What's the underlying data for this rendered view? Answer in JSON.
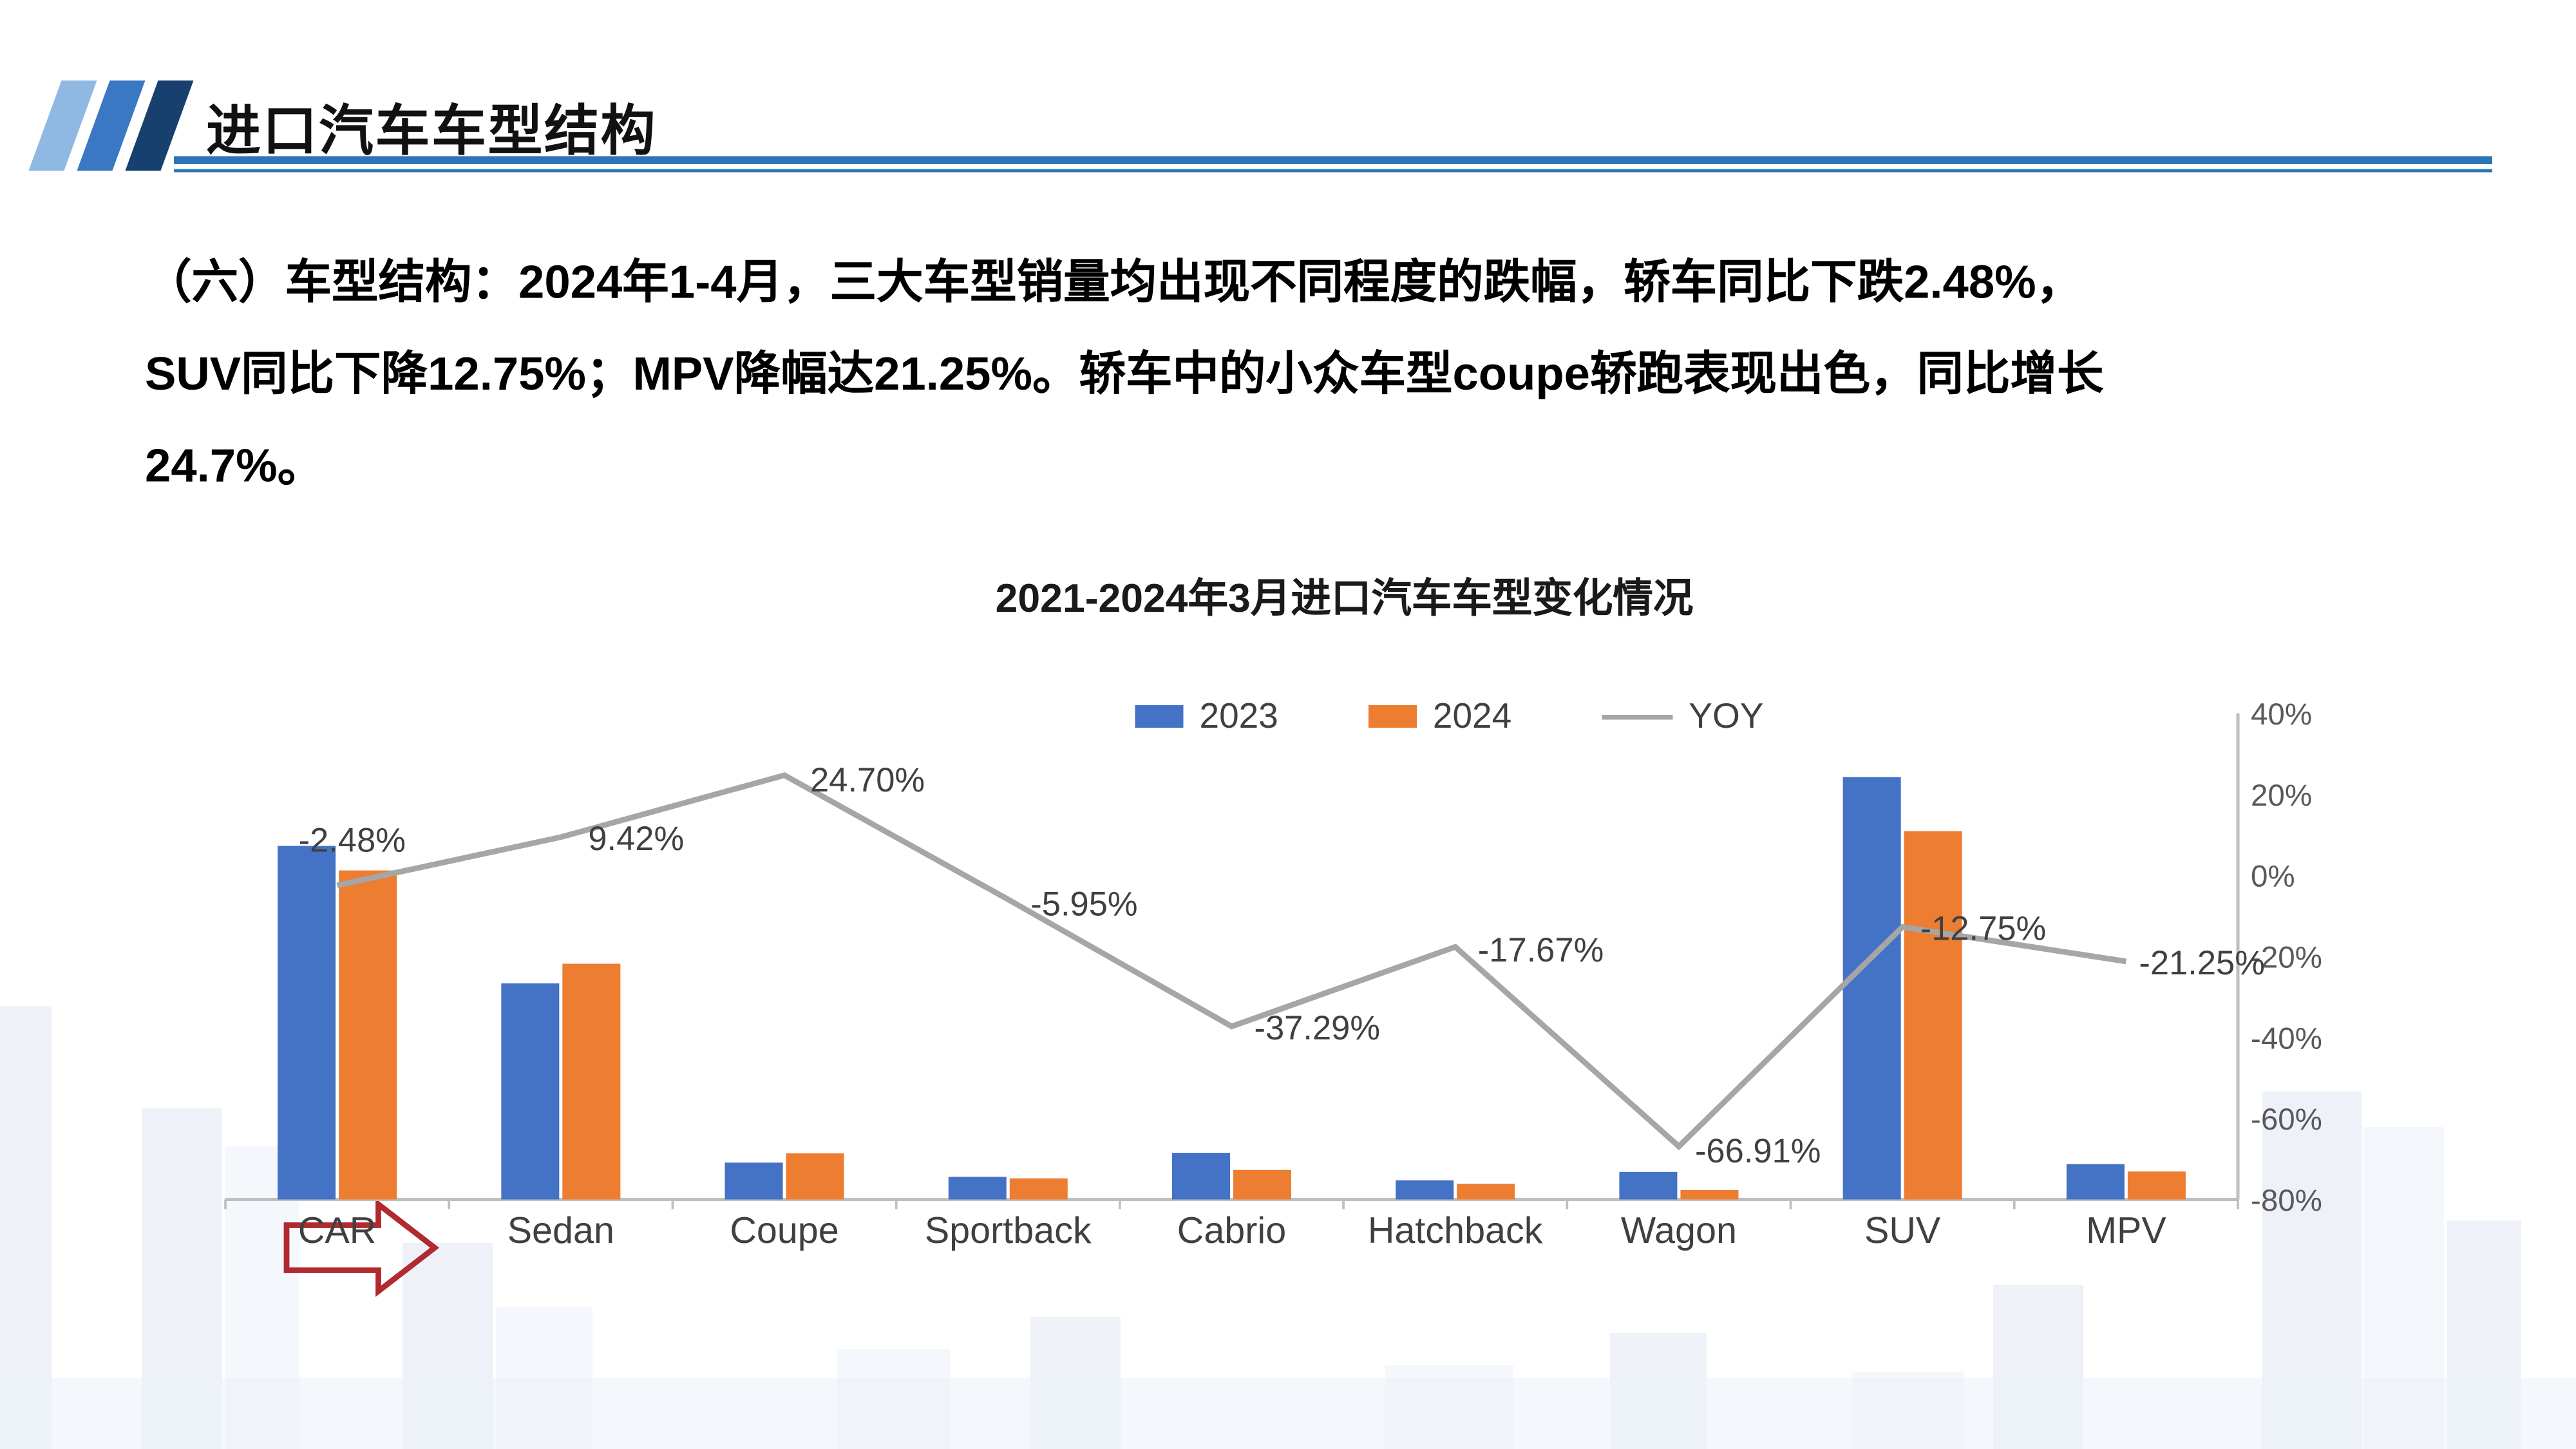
{
  "header": {
    "title": "进口汽车车型结构"
  },
  "intro": {
    "lines": [
      "（六）车型结构：2024年1-4月，三大车型销量均出现不同程度的跌幅，轿车同比下跌2.48%，",
      "SUV同比下降12.75%；MPV降幅达21.25%。轿车中的小众车型coupe轿跑表现出色，同比增长",
      "24.7%。"
    ]
  },
  "chart_data": {
    "type": "bar",
    "subtype": "bar+line-combo",
    "title": "2021-2024年3月进口汽车车型变化情况",
    "categories": [
      "CAR",
      "Sedan",
      "Coupe",
      "Sportback",
      "Cabrio",
      "Hatchback",
      "Wagon",
      "SUV",
      "MPV"
    ],
    "series": [
      {
        "name": "2023",
        "type": "bar",
        "color": "#4472C4",
        "values": [
          72,
          44,
          7.5,
          4.6,
          9.5,
          3.9,
          5.6,
          86,
          7.2
        ]
      },
      {
        "name": "2024",
        "type": "bar",
        "color": "#ED7D31",
        "values": [
          67,
          48,
          9.4,
          4.3,
          6.0,
          3.2,
          1.9,
          75,
          5.7
        ]
      },
      {
        "name": "YOY",
        "type": "line",
        "color": "#A6A6A6",
        "values": [
          -2.48,
          9.42,
          24.7,
          -5.95,
          -37.29,
          -17.67,
          -66.91,
          -12.75,
          -21.25
        ],
        "labels": [
          "-2.48%",
          "9.42%",
          "24.70%",
          "-5.95%",
          "-37.29%",
          "-17.67%",
          "-66.91%",
          "-12.75%",
          "-21.25%"
        ]
      }
    ],
    "right_axis": {
      "ticks": [
        "40%",
        "20%",
        "0%",
        "-20%",
        "-40%",
        "-60%",
        "-80%"
      ],
      "max": 40,
      "min": -80,
      "side": "right"
    },
    "left_axis": {
      "visible": false,
      "bar_values_scale": "relative 0-100 (axis hidden in source)"
    },
    "legend": {
      "entries": [
        "2023",
        "2024",
        "YOY"
      ],
      "position": "top-center"
    },
    "grid": "off"
  },
  "annotations": {
    "arrow": {
      "shape": "right-arrow",
      "target": "CAR",
      "color": "#B02A30"
    }
  },
  "colors": {
    "accent_blue": "#2E75B6",
    "bar_2023": "#4472C4",
    "bar_2024": "#ED7D31",
    "yoy_line": "#A6A6A6",
    "arrow_red": "#B02A30"
  }
}
